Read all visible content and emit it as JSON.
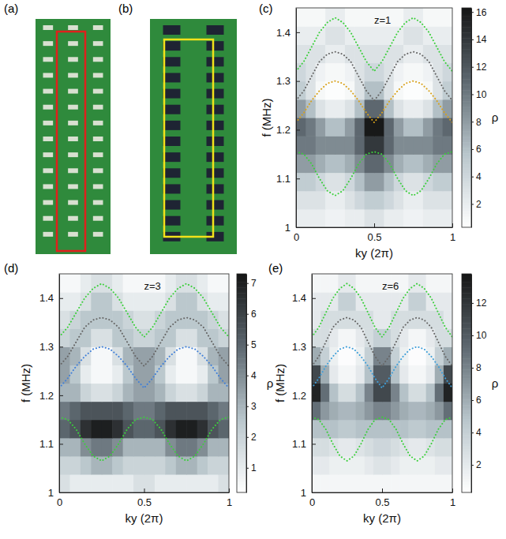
{
  "images": [
    {
      "label": "(a)"
    },
    {
      "label": "(b)"
    }
  ],
  "chart_data": [
    {
      "type": "heatmap",
      "panel": "(c)",
      "annotation": "z=1",
      "x_label": "ky (2π)",
      "y_label": "f (MHz)",
      "xlim": [
        0,
        1
      ],
      "xticks": [
        0,
        0.5,
        1
      ],
      "ylim": [
        1,
        1.45
      ],
      "yticks": [
        1,
        1.1,
        1.2,
        1.3,
        1.4
      ],
      "x_edges": [
        0,
        0.0625,
        0.125,
        0.1875,
        0.25,
        0.3125,
        0.375,
        0.4375,
        0.5,
        0.5625,
        0.625,
        0.6875,
        0.75,
        0.8125,
        0.875,
        0.9375,
        1
      ],
      "y_edges": [
        1,
        1.0375,
        1.075,
        1.1125,
        1.15,
        1.1875,
        1.225,
        1.2625,
        1.3,
        1.3375,
        1.375,
        1.4125,
        1.45
      ],
      "cells": [
        [
          2,
          2,
          2,
          1.5,
          1.5,
          2,
          2,
          3,
          3,
          2,
          2,
          1.5,
          1.5,
          2,
          2,
          2
        ],
        [
          3,
          3,
          3,
          2,
          2,
          3,
          4,
          5,
          5,
          4,
          3,
          2,
          2,
          3,
          3,
          3
        ],
        [
          5,
          5,
          4,
          3,
          3,
          4,
          6,
          8,
          8,
          6,
          4,
          3,
          3,
          4,
          5,
          5
        ],
        [
          8,
          8,
          7,
          6,
          6,
          7,
          9,
          11,
          11,
          9,
          7,
          6,
          6,
          7,
          8,
          8
        ],
        [
          10,
          10,
          9,
          9,
          9,
          9,
          11,
          14,
          14,
          11,
          9,
          9,
          9,
          9,
          10,
          10
        ],
        [
          11,
          10,
          8,
          6,
          6,
          8,
          11,
          16,
          16,
          11,
          8,
          6,
          6,
          8,
          10,
          11
        ],
        [
          8,
          6,
          3,
          2,
          2,
          3,
          6,
          11,
          11,
          6,
          3,
          2,
          2,
          3,
          6,
          8
        ],
        [
          5,
          3,
          1,
          0.5,
          0.5,
          1,
          3,
          6,
          6,
          3,
          1,
          0.5,
          0.5,
          1,
          3,
          5
        ],
        [
          4,
          3,
          1.5,
          1,
          1,
          1.5,
          3,
          4,
          4,
          3,
          1.5,
          1,
          1,
          1.5,
          3,
          4
        ],
        [
          3,
          3,
          3,
          2,
          2,
          3,
          3,
          3,
          3,
          3,
          3,
          2,
          2,
          3,
          3,
          3
        ],
        [
          2,
          2,
          2,
          3,
          3,
          2,
          2,
          2,
          2,
          2,
          2,
          3,
          3,
          2,
          2,
          2
        ],
        [
          1,
          1,
          1,
          2,
          2,
          1,
          1,
          1,
          1,
          1,
          1,
          2,
          2,
          1,
          1,
          1
        ]
      ],
      "colorbar": {
        "label": "ρ",
        "range": [
          0.3,
          16.3
        ],
        "ticks": [
          2,
          4,
          6,
          8,
          10,
          12,
          14,
          16
        ]
      },
      "x": [
        0,
        0.05,
        0.1,
        0.15,
        0.2,
        0.25,
        0.3,
        0.35,
        0.4,
        0.45,
        0.5,
        0.55,
        0.6,
        0.65,
        0.7,
        0.75,
        0.8,
        0.85,
        0.9,
        0.95,
        1
      ],
      "series": [
        {
          "type": "line",
          "line_style": "dotted",
          "color": "#3ccf3c",
          "values": [
            1.32,
            1.34,
            1.37,
            1.4,
            1.42,
            1.43,
            1.42,
            1.4,
            1.37,
            1.34,
            1.32,
            1.34,
            1.37,
            1.4,
            1.42,
            1.43,
            1.42,
            1.4,
            1.37,
            1.34,
            1.32
          ]
        },
        {
          "type": "line",
          "line_style": "dotted",
          "color": "#666666",
          "values": [
            1.26,
            1.28,
            1.31,
            1.34,
            1.355,
            1.36,
            1.355,
            1.34,
            1.31,
            1.28,
            1.26,
            1.28,
            1.31,
            1.34,
            1.355,
            1.36,
            1.355,
            1.34,
            1.31,
            1.28,
            1.26
          ]
        },
        {
          "type": "line",
          "line_style": "dotted",
          "color": "#d9a21b",
          "values": [
            1.215,
            1.235,
            1.26,
            1.28,
            1.295,
            1.3,
            1.295,
            1.28,
            1.26,
            1.235,
            1.215,
            1.235,
            1.26,
            1.28,
            1.295,
            1.3,
            1.295,
            1.28,
            1.26,
            1.235,
            1.215
          ]
        },
        {
          "type": "line",
          "line_style": "dotted",
          "color": "#3ccf3c",
          "values": [
            1.155,
            1.15,
            1.13,
            1.1,
            1.075,
            1.065,
            1.075,
            1.1,
            1.13,
            1.15,
            1.155,
            1.15,
            1.13,
            1.1,
            1.075,
            1.065,
            1.075,
            1.1,
            1.13,
            1.15,
            1.155
          ]
        }
      ]
    },
    {
      "type": "heatmap",
      "panel": "(d)",
      "annotation": "z=3",
      "x_label": "ky (2π)",
      "y_label": "f (MHz)",
      "xlim": [
        0,
        1
      ],
      "xticks": [
        0,
        0.5,
        1
      ],
      "ylim": [
        1,
        1.45
      ],
      "yticks": [
        1,
        1.1,
        1.2,
        1.3,
        1.4
      ],
      "x_edges": [
        0,
        0.0625,
        0.125,
        0.1875,
        0.25,
        0.3125,
        0.375,
        0.4375,
        0.5,
        0.5625,
        0.625,
        0.6875,
        0.75,
        0.8125,
        0.875,
        0.9375,
        1
      ],
      "y_edges": [
        1,
        1.0375,
        1.075,
        1.1125,
        1.15,
        1.1875,
        1.225,
        1.2625,
        1.3,
        1.3375,
        1.375,
        1.4125,
        1.45
      ],
      "cells": [
        [
          1.5,
          1,
          1,
          1,
          1,
          1,
          1,
          1.5,
          1.5,
          1,
          1,
          1,
          1,
          1,
          1,
          1.5
        ],
        [
          2,
          2,
          2.5,
          3,
          3,
          2.5,
          2,
          2,
          2,
          2,
          2.5,
          3,
          3,
          2.5,
          2,
          2
        ],
        [
          3,
          3,
          4,
          4.5,
          4.5,
          4,
          3,
          3,
          3,
          3,
          4,
          4.5,
          4.5,
          4,
          3,
          3
        ],
        [
          5,
          5.5,
          6.5,
          7,
          7,
          6.5,
          5.5,
          5,
          5,
          5.5,
          6.5,
          7,
          7,
          6.5,
          5.5,
          5
        ],
        [
          4.5,
          5,
          5.5,
          5.5,
          5.5,
          5.5,
          5,
          4.5,
          4.5,
          5,
          5.5,
          5.5,
          5.5,
          5.5,
          5,
          4.5
        ],
        [
          3,
          3,
          2,
          1.5,
          1.5,
          2,
          3,
          3.5,
          3.5,
          3,
          2,
          1.5,
          1.5,
          2,
          3,
          3
        ],
        [
          3.5,
          2.5,
          1,
          0.5,
          0.5,
          1,
          2.5,
          3.5,
          3.5,
          2.5,
          1,
          0.5,
          0.5,
          1,
          2.5,
          3.5
        ],
        [
          3.5,
          3,
          1.5,
          0.5,
          0.5,
          1.5,
          3,
          3.5,
          3.5,
          3,
          1.5,
          0.5,
          0.5,
          1.5,
          3,
          3.5
        ],
        [
          2,
          2.5,
          2.5,
          1.5,
          1.5,
          2.5,
          2.5,
          2,
          2,
          2.5,
          2.5,
          1.5,
          1.5,
          2.5,
          2.5,
          2
        ],
        [
          1.5,
          2,
          2.5,
          2.5,
          2.5,
          2.5,
          2,
          1.5,
          1.5,
          2,
          2.5,
          2.5,
          2.5,
          2.5,
          2,
          1.5
        ],
        [
          1,
          1,
          1.5,
          2.5,
          2.5,
          1.5,
          1,
          1,
          1,
          1,
          1.5,
          2.5,
          2.5,
          1.5,
          1,
          1
        ],
        [
          0.5,
          0.5,
          1,
          1.5,
          1.5,
          1,
          0.5,
          0.5,
          0.5,
          0.5,
          1,
          1.5,
          1.5,
          1,
          0.5,
          0.5
        ]
      ],
      "colorbar": {
        "label": "ρ",
        "range": [
          0.2,
          7.3
        ],
        "ticks": [
          1,
          2,
          3,
          4,
          5,
          6,
          7
        ]
      },
      "x": [
        0,
        0.05,
        0.1,
        0.15,
        0.2,
        0.25,
        0.3,
        0.35,
        0.4,
        0.45,
        0.5,
        0.55,
        0.6,
        0.65,
        0.7,
        0.75,
        0.8,
        0.85,
        0.9,
        0.95,
        1
      ],
      "series": [
        {
          "type": "line",
          "line_style": "dotted",
          "color": "#3ccf3c",
          "values": [
            1.32,
            1.34,
            1.37,
            1.4,
            1.42,
            1.43,
            1.42,
            1.4,
            1.37,
            1.34,
            1.32,
            1.34,
            1.37,
            1.4,
            1.42,
            1.43,
            1.42,
            1.4,
            1.37,
            1.34,
            1.32
          ]
        },
        {
          "type": "line",
          "line_style": "dotted",
          "color": "#666666",
          "values": [
            1.26,
            1.28,
            1.31,
            1.34,
            1.355,
            1.36,
            1.355,
            1.34,
            1.31,
            1.28,
            1.26,
            1.28,
            1.31,
            1.34,
            1.355,
            1.36,
            1.355,
            1.34,
            1.31,
            1.28,
            1.26
          ]
        },
        {
          "type": "line",
          "line_style": "dotted",
          "color": "#3f7fd9",
          "values": [
            1.215,
            1.235,
            1.26,
            1.28,
            1.295,
            1.3,
            1.295,
            1.28,
            1.26,
            1.235,
            1.215,
            1.235,
            1.26,
            1.28,
            1.295,
            1.3,
            1.295,
            1.28,
            1.26,
            1.235,
            1.215
          ]
        },
        {
          "type": "line",
          "line_style": "dotted",
          "color": "#3ccf3c",
          "values": [
            1.155,
            1.15,
            1.13,
            1.1,
            1.075,
            1.065,
            1.075,
            1.1,
            1.13,
            1.15,
            1.155,
            1.15,
            1.13,
            1.1,
            1.075,
            1.065,
            1.075,
            1.1,
            1.13,
            1.15,
            1.155
          ]
        }
      ]
    },
    {
      "type": "heatmap",
      "panel": "(e)",
      "annotation": "z=6",
      "x_label": "ky (2π)",
      "y_label": "f (MHz)",
      "xlim": [
        0,
        1
      ],
      "xticks": [
        0,
        0.5,
        1
      ],
      "ylim": [
        1,
        1.45
      ],
      "yticks": [
        1,
        1.1,
        1.2,
        1.3,
        1.4
      ],
      "x_edges": [
        0,
        0.0625,
        0.125,
        0.1875,
        0.25,
        0.3125,
        0.375,
        0.4375,
        0.5,
        0.5625,
        0.625,
        0.6875,
        0.75,
        0.8125,
        0.875,
        0.9375,
        1
      ],
      "y_edges": [
        1,
        1.0375,
        1.075,
        1.1125,
        1.15,
        1.1875,
        1.225,
        1.2625,
        1.3,
        1.3375,
        1.375,
        1.4125,
        1.45
      ],
      "cells": [
        [
          1,
          1,
          1,
          1,
          1,
          1,
          1,
          1,
          1,
          1,
          1,
          1,
          1,
          1,
          1,
          1
        ],
        [
          2,
          2,
          1.5,
          1.5,
          1.5,
          1.5,
          2,
          2.5,
          2.5,
          2,
          1.5,
          1.5,
          1.5,
          1.5,
          2,
          2
        ],
        [
          3,
          3,
          2.5,
          2,
          2,
          2.5,
          3,
          3.5,
          3.5,
          3,
          2.5,
          2,
          2,
          2.5,
          3,
          3
        ],
        [
          5,
          5,
          5,
          4.5,
          4.5,
          5,
          5,
          5,
          5,
          5,
          5,
          4.5,
          4.5,
          5,
          5,
          5
        ],
        [
          9,
          7,
          6,
          5.5,
          5.5,
          6,
          7,
          8,
          8,
          7,
          6,
          5.5,
          5.5,
          6,
          7,
          9
        ],
        [
          13,
          9,
          5,
          3,
          3,
          5,
          8,
          11,
          11,
          8,
          5,
          3,
          3,
          5,
          9,
          13
        ],
        [
          11,
          6,
          2,
          1,
          1,
          2,
          5,
          10,
          10,
          5,
          2,
          1,
          1,
          2,
          6,
          11
        ],
        [
          6,
          4,
          1.5,
          0.5,
          0.5,
          1.5,
          4,
          8,
          8,
          4,
          1.5,
          0.5,
          0.5,
          1.5,
          4,
          6
        ],
        [
          3,
          3,
          2,
          1,
          1,
          2,
          3,
          4,
          4,
          3,
          2,
          1,
          1,
          2,
          3,
          3
        ],
        [
          2,
          3,
          3,
          3,
          3,
          3,
          3,
          2,
          2,
          3,
          3,
          3,
          3,
          3,
          3,
          2
        ],
        [
          2,
          2,
          2,
          4,
          4,
          2,
          2,
          2,
          2,
          2,
          2,
          4,
          4,
          2,
          2,
          2
        ],
        [
          1,
          1,
          1,
          2,
          2,
          1,
          1,
          1,
          1,
          1,
          1,
          2,
          2,
          1,
          1,
          1
        ]
      ],
      "colorbar": {
        "label": "ρ",
        "range": [
          0.3,
          13.8
        ],
        "ticks": [
          2,
          4,
          6,
          8,
          10,
          12
        ]
      },
      "x": [
        0,
        0.05,
        0.1,
        0.15,
        0.2,
        0.25,
        0.3,
        0.35,
        0.4,
        0.45,
        0.5,
        0.55,
        0.6,
        0.65,
        0.7,
        0.75,
        0.8,
        0.85,
        0.9,
        0.95,
        1
      ],
      "series": [
        {
          "type": "line",
          "line_style": "dotted",
          "color": "#3ccf3c",
          "values": [
            1.32,
            1.34,
            1.37,
            1.4,
            1.42,
            1.43,
            1.42,
            1.4,
            1.37,
            1.34,
            1.32,
            1.34,
            1.37,
            1.4,
            1.42,
            1.43,
            1.42,
            1.4,
            1.37,
            1.34,
            1.32
          ]
        },
        {
          "type": "line",
          "line_style": "dotted",
          "color": "#666666",
          "values": [
            1.26,
            1.28,
            1.31,
            1.34,
            1.355,
            1.36,
            1.355,
            1.34,
            1.31,
            1.28,
            1.26,
            1.28,
            1.31,
            1.34,
            1.355,
            1.36,
            1.355,
            1.34,
            1.31,
            1.28,
            1.26
          ]
        },
        {
          "type": "line",
          "line_style": "dotted",
          "color": "#3f9fd9",
          "values": [
            1.215,
            1.235,
            1.26,
            1.28,
            1.295,
            1.3,
            1.295,
            1.28,
            1.26,
            1.235,
            1.215,
            1.235,
            1.26,
            1.28,
            1.295,
            1.3,
            1.295,
            1.28,
            1.26,
            1.235,
            1.215
          ]
        },
        {
          "type": "line",
          "line_style": "dotted",
          "color": "#3ccf3c",
          "values": [
            1.155,
            1.15,
            1.13,
            1.1,
            1.075,
            1.065,
            1.075,
            1.1,
            1.13,
            1.15,
            1.155,
            1.15,
            1.13,
            1.1,
            1.075,
            1.065,
            1.075,
            1.1,
            1.13,
            1.15,
            1.155
          ]
        }
      ]
    }
  ]
}
